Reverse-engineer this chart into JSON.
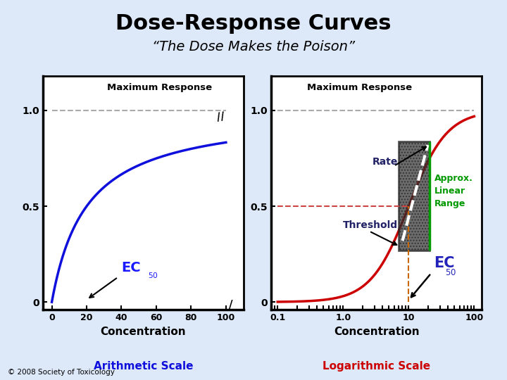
{
  "title": "Dose-Response Curves",
  "subtitle": "“The Dose Makes the Poison”",
  "title_fontsize": 22,
  "subtitle_fontsize": 14,
  "background_color": "#dde8f8",
  "panel_bg": "#ffffff",
  "copyright": "© 2008 Society of Toxicology",
  "left_panel": {
    "ytick_labels": [
      "0",
      "0.5",
      "1.0"
    ],
    "xtick_labels": [
      "0",
      "20",
      "40",
      "60",
      "80",
      "100"
    ],
    "xticks": [
      0,
      20,
      40,
      60,
      80,
      100
    ],
    "xlabel": "Concentration",
    "scale_label": "Arithmetic Scale",
    "max_response_label": "Maximum Response",
    "curve_color": "#1010dd",
    "dashed_color": "#aaaaaa",
    "ec50_color": "#1a1aff"
  },
  "right_panel": {
    "ytick_labels": [
      "0",
      "0.5",
      "1.0"
    ],
    "xtick_labels": [
      "0.1",
      "1.0",
      "10",
      "100"
    ],
    "xticks": [
      0.1,
      1.0,
      10,
      100
    ],
    "xlabel": "Concentration",
    "scale_label": "Logarithmic Scale",
    "max_response_label": "Maximum Response",
    "curve_color": "#cc0000",
    "dashed_color": "#aaaaaa",
    "rate_label": "Rate",
    "threshold_label": "Threshold",
    "approx_label": "Approx.\nLinear\nRange",
    "approx_color": "#009900",
    "box_hatch": "...",
    "box_face": "#333333",
    "box_edge": "#222222",
    "dashed_line_white": "#ffffff",
    "ec50_dashed_color": "#cc6600",
    "half_response_dashed": "#cc4444",
    "ec50_text_color": "#2222bb",
    "rate_text_color": "#222266",
    "threshold_text_color": "#222266"
  }
}
